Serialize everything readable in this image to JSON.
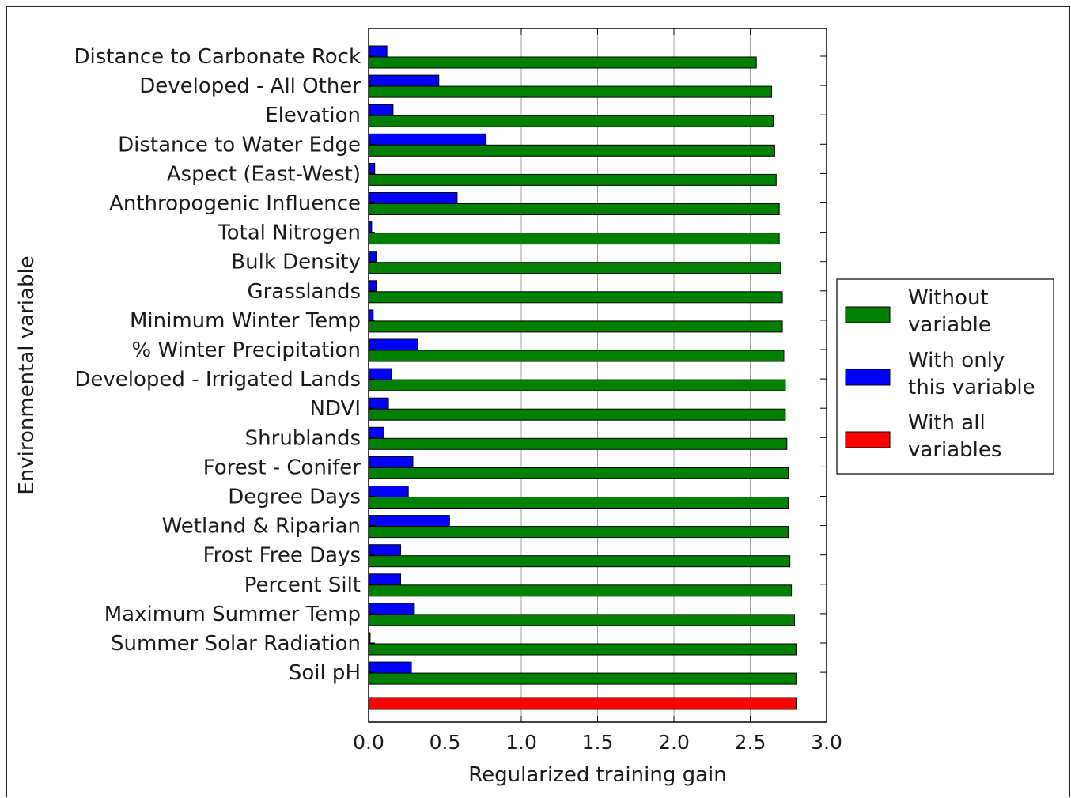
{
  "chart_data": {
    "type": "bar",
    "orientation": "horizontal",
    "title": "",
    "xlabel": "Regularized training gain",
    "ylabel": "Environmental variable",
    "xlim": [
      0.0,
      3.0
    ],
    "xticks": [
      "0.0",
      "0.5",
      "1.0",
      "1.5",
      "2.0",
      "2.5",
      "3.0"
    ],
    "grid": "vertical",
    "legend_position": "right",
    "categories": [
      "Distance to Carbonate Rock",
      "Developed - All Other",
      "Elevation",
      "Distance to Water Edge",
      "Aspect (East-West)",
      "Anthropogenic Influence",
      "Total Nitrogen",
      "Bulk Density",
      "Grasslands",
      "Minimum Winter Temp",
      "% Winter Precipitation",
      "Developed - Irrigated Lands",
      "NDVI",
      "Shrublands",
      "Forest - Conifer",
      "Degree Days",
      "Wetland & Riparian",
      "Frost Free Days",
      "Percent Silt",
      "Maximum Summer Temp",
      "Summer Solar Radiation",
      "Soil pH"
    ],
    "series": [
      {
        "name": "Without variable",
        "color": "#008000",
        "values": [
          2.54,
          2.64,
          2.65,
          2.66,
          2.67,
          2.69,
          2.69,
          2.7,
          2.71,
          2.71,
          2.72,
          2.73,
          2.73,
          2.74,
          2.75,
          2.75,
          2.75,
          2.76,
          2.77,
          2.79,
          2.8,
          2.8
        ]
      },
      {
        "name": "With only this variable",
        "color": "#0000ff",
        "values": [
          0.12,
          0.46,
          0.16,
          0.77,
          0.04,
          0.58,
          0.02,
          0.05,
          0.05,
          0.03,
          0.32,
          0.15,
          0.13,
          0.1,
          0.29,
          0.26,
          0.53,
          0.21,
          0.21,
          0.3,
          0.01,
          0.28
        ]
      }
    ],
    "all_variables": {
      "name": "With all variables",
      "color": "#ff0000",
      "value": 2.8
    },
    "legend": [
      {
        "line1": "Without",
        "line2": "variable",
        "color": "#008000"
      },
      {
        "line1": "With only",
        "line2": "this variable",
        "color": "#0000ff"
      },
      {
        "line1": "With all",
        "line2": "variables",
        "color": "#ff0000"
      }
    ]
  }
}
